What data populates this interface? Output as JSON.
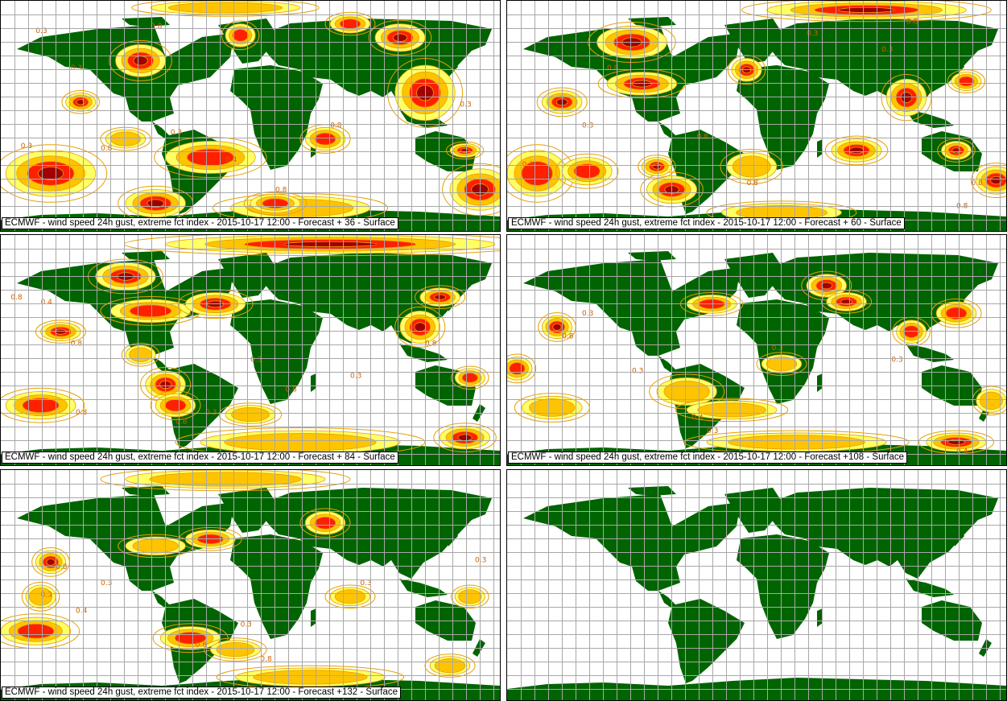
{
  "colors": {
    "land": "#006400",
    "ocean": "#ffffff",
    "grid": "#a8a8a8",
    "contour": "#e8a000",
    "level_low": "#ffff66",
    "level_mid": "#ffc400",
    "level_high": "#ff2000",
    "level_max": "#a00000"
  },
  "panels": [
    {
      "caption": "ECMWF - wind speed 24h gust, extreme fct index - 2015-10-17 12:00 - Forecast + 36 - Surface",
      "blobs": [
        [
          0.1,
          0.75,
          0.09,
          0.1,
          3
        ],
        [
          0.28,
          0.26,
          0.05,
          0.07,
          3
        ],
        [
          0.48,
          0.15,
          0.03,
          0.05,
          2
        ],
        [
          0.85,
          0.4,
          0.06,
          0.12,
          3
        ],
        [
          0.8,
          0.16,
          0.05,
          0.06,
          3
        ],
        [
          0.42,
          0.68,
          0.09,
          0.07,
          2
        ],
        [
          0.31,
          0.88,
          0.06,
          0.06,
          3
        ],
        [
          0.96,
          0.82,
          0.06,
          0.09,
          3
        ],
        [
          0.6,
          0.9,
          0.14,
          0.05,
          1
        ],
        [
          0.16,
          0.44,
          0.03,
          0.04,
          3
        ],
        [
          0.25,
          0.6,
          0.04,
          0.04,
          1
        ],
        [
          0.7,
          0.1,
          0.04,
          0.04,
          2
        ],
        [
          0.93,
          0.65,
          0.03,
          0.03,
          3
        ],
        [
          0.45,
          0.03,
          0.15,
          0.03,
          1
        ],
        [
          0.65,
          0.6,
          0.04,
          0.05,
          2
        ],
        [
          0.55,
          0.88,
          0.05,
          0.04,
          2
        ]
      ],
      "labels": [
        [
          0.07,
          0.14,
          "0.3"
        ],
        [
          0.2,
          0.65,
          "0.8"
        ],
        [
          0.66,
          0.55,
          "0.8"
        ],
        [
          0.34,
          0.58,
          "0.3"
        ],
        [
          0.92,
          0.46,
          "0.3"
        ],
        [
          0.14,
          0.3,
          "0.3"
        ],
        [
          0.55,
          0.83,
          "0.8"
        ],
        [
          0.45,
          0.7,
          "0.4"
        ],
        [
          0.04,
          0.64,
          "0.3"
        ],
        [
          0.3,
          0.12,
          "0.8"
        ]
      ]
    },
    {
      "caption": "ECMWF - wind speed 24h gust, extreme fct index - 2015-10-17 12:00 - Forecast + 60 - Surface",
      "blobs": [
        [
          0.25,
          0.18,
          0.07,
          0.07,
          3
        ],
        [
          0.27,
          0.36,
          0.07,
          0.05,
          3
        ],
        [
          0.48,
          0.3,
          0.03,
          0.05,
          3
        ],
        [
          0.8,
          0.42,
          0.04,
          0.08,
          3
        ],
        [
          0.11,
          0.44,
          0.04,
          0.05,
          3
        ],
        [
          0.33,
          0.82,
          0.05,
          0.06,
          3
        ],
        [
          0.3,
          0.72,
          0.03,
          0.04,
          3
        ],
        [
          0.06,
          0.75,
          0.06,
          0.1,
          2
        ],
        [
          0.16,
          0.74,
          0.05,
          0.06,
          2
        ],
        [
          0.72,
          0.04,
          0.2,
          0.04,
          3
        ],
        [
          0.7,
          0.65,
          0.05,
          0.05,
          3
        ],
        [
          0.49,
          0.72,
          0.05,
          0.06,
          1
        ],
        [
          0.98,
          0.78,
          0.04,
          0.06,
          3
        ],
        [
          0.9,
          0.65,
          0.03,
          0.04,
          3
        ],
        [
          0.55,
          0.92,
          0.12,
          0.04,
          1
        ],
        [
          0.92,
          0.35,
          0.03,
          0.04,
          2
        ]
      ],
      "labels": [
        [
          0.2,
          0.3,
          "0.8"
        ],
        [
          0.38,
          0.6,
          "0.8"
        ],
        [
          0.48,
          0.8,
          "0.8"
        ],
        [
          0.75,
          0.22,
          "0.3"
        ],
        [
          0.9,
          0.9,
          "0.8"
        ],
        [
          0.6,
          0.15,
          "0.3"
        ],
        [
          0.15,
          0.55,
          "0.3"
        ],
        [
          0.03,
          0.72,
          "0.3"
        ],
        [
          0.93,
          0.8,
          "0.8"
        ],
        [
          0.8,
          0.1,
          "0.8"
        ]
      ]
    },
    {
      "caption": "ECMWF - wind speed 24h gust, extreme fct index - 2015-10-17 12:00 - Forecast + 84 - Surface",
      "blobs": [
        [
          0.25,
          0.18,
          0.06,
          0.06,
          3
        ],
        [
          0.3,
          0.33,
          0.08,
          0.05,
          2
        ],
        [
          0.66,
          0.04,
          0.33,
          0.04,
          3
        ],
        [
          0.43,
          0.3,
          0.06,
          0.05,
          3
        ],
        [
          0.84,
          0.4,
          0.04,
          0.07,
          3
        ],
        [
          0.88,
          0.27,
          0.04,
          0.04,
          3
        ],
        [
          0.12,
          0.42,
          0.04,
          0.04,
          3
        ],
        [
          0.33,
          0.65,
          0.04,
          0.06,
          3
        ],
        [
          0.35,
          0.74,
          0.04,
          0.05,
          2
        ],
        [
          0.08,
          0.74,
          0.07,
          0.06,
          2
        ],
        [
          0.5,
          0.78,
          0.05,
          0.04,
          1
        ],
        [
          0.6,
          0.9,
          0.2,
          0.05,
          1
        ],
        [
          0.93,
          0.88,
          0.05,
          0.05,
          3
        ],
        [
          0.94,
          0.62,
          0.03,
          0.04,
          2
        ],
        [
          0.28,
          0.52,
          0.03,
          0.04,
          1
        ]
      ],
      "labels": [
        [
          0.14,
          0.48,
          "0.8"
        ],
        [
          0.35,
          0.82,
          "0.8"
        ],
        [
          0.7,
          0.62,
          "0.3"
        ],
        [
          0.08,
          0.3,
          "0.4"
        ],
        [
          0.5,
          0.55,
          "0.3"
        ],
        [
          0.85,
          0.48,
          "0.8"
        ],
        [
          0.15,
          0.78,
          "0.8"
        ],
        [
          0.41,
          0.78,
          "0.3"
        ],
        [
          0.57,
          0.68,
          "0.8"
        ],
        [
          0.02,
          0.28,
          "0.8"
        ]
      ]
    },
    {
      "caption": "ECMWF - wind speed 24h gust, extreme fct index - 2015-10-17 12:00 - Forecast +108 - Surface",
      "blobs": [
        [
          0.1,
          0.4,
          0.03,
          0.05,
          3
        ],
        [
          0.64,
          0.22,
          0.04,
          0.05,
          3
        ],
        [
          0.68,
          0.29,
          0.04,
          0.04,
          3
        ],
        [
          0.41,
          0.3,
          0.05,
          0.04,
          2
        ],
        [
          0.9,
          0.34,
          0.04,
          0.05,
          2
        ],
        [
          0.81,
          0.42,
          0.03,
          0.05,
          2
        ],
        [
          0.09,
          0.75,
          0.06,
          0.05,
          1
        ],
        [
          0.36,
          0.68,
          0.06,
          0.06,
          1
        ],
        [
          0.45,
          0.76,
          0.09,
          0.04,
          1
        ],
        [
          0.58,
          0.9,
          0.18,
          0.04,
          1
        ],
        [
          0.9,
          0.9,
          0.06,
          0.04,
          3
        ],
        [
          0.97,
          0.72,
          0.03,
          0.05,
          1
        ],
        [
          0.55,
          0.56,
          0.04,
          0.04,
          1
        ],
        [
          0.02,
          0.58,
          0.03,
          0.05,
          2
        ]
      ],
      "labels": [
        [
          0.11,
          0.45,
          "0.8"
        ],
        [
          0.25,
          0.6,
          "0.3"
        ],
        [
          0.53,
          0.5,
          "0.3"
        ],
        [
          0.77,
          0.55,
          "0.3"
        ],
        [
          0.37,
          0.8,
          "0.4"
        ],
        [
          0.4,
          0.86,
          "0.3"
        ],
        [
          0.9,
          0.95,
          "0.4"
        ],
        [
          0.15,
          0.35,
          "0.3"
        ]
      ]
    },
    {
      "caption": "ECMWF - wind speed 24h gust, extreme fct index - 2015-10-17 12:00 - Forecast +132 - Surface",
      "blobs": [
        [
          0.1,
          0.4,
          0.03,
          0.05,
          3
        ],
        [
          0.42,
          0.3,
          0.05,
          0.04,
          2
        ],
        [
          0.65,
          0.23,
          0.04,
          0.05,
          2
        ],
        [
          0.31,
          0.33,
          0.06,
          0.04,
          1
        ],
        [
          0.07,
          0.7,
          0.07,
          0.06,
          2
        ],
        [
          0.38,
          0.73,
          0.06,
          0.05,
          2
        ],
        [
          0.47,
          0.78,
          0.05,
          0.04,
          1
        ],
        [
          0.08,
          0.55,
          0.03,
          0.05,
          1
        ],
        [
          0.7,
          0.55,
          0.04,
          0.04,
          1
        ],
        [
          0.94,
          0.55,
          0.03,
          0.04,
          1
        ],
        [
          0.62,
          0.9,
          0.15,
          0.04,
          1
        ],
        [
          0.9,
          0.85,
          0.04,
          0.04,
          1
        ],
        [
          0.45,
          0.04,
          0.2,
          0.04,
          1
        ]
      ],
      "labels": [
        [
          0.11,
          0.43,
          "0.8"
        ],
        [
          0.39,
          0.77,
          "0.8"
        ],
        [
          0.52,
          0.83,
          "0.8"
        ],
        [
          0.2,
          0.5,
          "0.3"
        ],
        [
          0.08,
          0.55,
          "0.3"
        ],
        [
          0.95,
          0.4,
          "0.3"
        ],
        [
          0.48,
          0.68,
          "0.3"
        ],
        [
          0.15,
          0.62,
          "0.4"
        ],
        [
          0.72,
          0.5,
          "0.3"
        ]
      ]
    },
    {
      "caption": "",
      "blobs": [],
      "labels": []
    }
  ]
}
